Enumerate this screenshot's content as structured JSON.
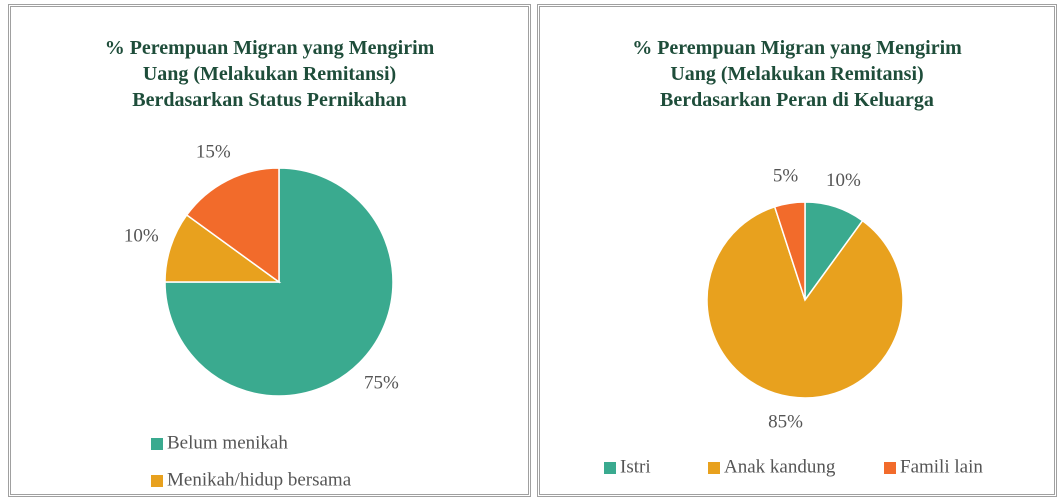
{
  "chart_data": [
    {
      "type": "pie",
      "title": "% Perempuan Migran yang Mengirim Uang (Melakukan Remitansi) Berdasarkan Status Pernikahan",
      "categories": [
        "Belum menikah",
        "Menikah/hidup bersama",
        null
      ],
      "values": [
        75,
        10,
        15
      ],
      "value_labels": [
        "75%",
        "10%",
        "15%"
      ],
      "colors": [
        "#3aaa8f",
        "#e8a11e",
        "#f26b2b"
      ],
      "legend": "bottom"
    },
    {
      "type": "pie",
      "title": "% Perempuan Migran yang Mengirim Uang (Melakukan Remitansi) Berdasarkan Peran di Keluarga",
      "categories": [
        "Istri",
        "Anak kandung",
        "Famili lain"
      ],
      "values": [
        10,
        85,
        5
      ],
      "value_labels": [
        "10%",
        "85%",
        "5%"
      ],
      "colors": [
        "#3aaa8f",
        "#e8a11e",
        "#f26b2b"
      ],
      "legend": "bottom"
    }
  ]
}
